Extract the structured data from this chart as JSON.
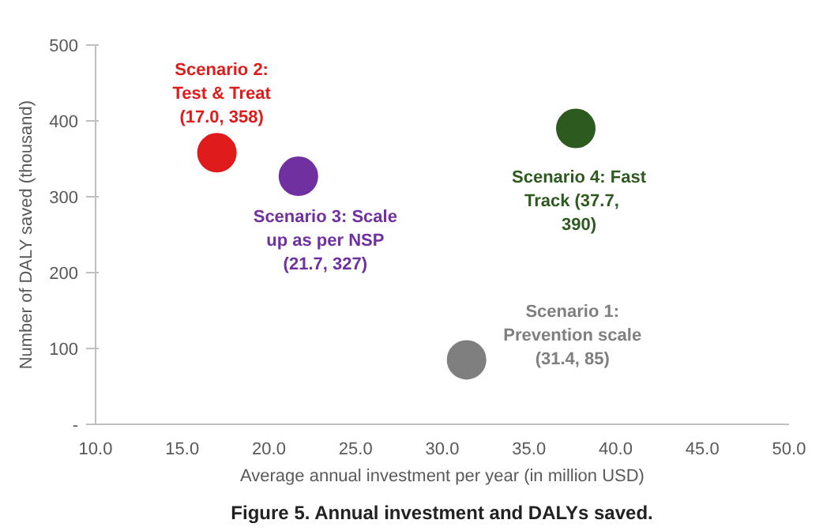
{
  "chart_data": {
    "type": "scatter",
    "title": "Figure 5. Annual investment and DALYs saved.",
    "xlabel": "Average annual investment per year (in million USD)",
    "ylabel": "Number of DALY saved (thousand)",
    "series": [
      {
        "name": "Scenario 1:\nPrevention scale\n(31.4, 85)",
        "color": "#7f7f7f",
        "x": [
          31.4
        ],
        "values": [
          85
        ]
      },
      {
        "name": "Scenario 2:\nTest & Treat\n(17.0, 358)",
        "color": "#e01b1b",
        "x": [
          17.0
        ],
        "values": [
          358
        ]
      },
      {
        "name": "Scenario 3: Scale\nup as per NSP\n(21.7, 327)",
        "color": "#7030a0",
        "x": [
          21.7
        ],
        "values": [
          327
        ]
      },
      {
        "name": "Scenario 4: Fast\nTrack    (37.7,\n390)",
        "color": "#2d5a1e",
        "x": [
          37.7
        ],
        "values": [
          390
        ]
      }
    ],
    "xlim": [
      10,
      50
    ],
    "ylim": [
      0,
      500
    ],
    "xticks": [
      {
        "value": 10,
        "label": "10.0"
      },
      {
        "value": 15,
        "label": "15.0"
      },
      {
        "value": 20,
        "label": "20.0"
      },
      {
        "value": 25,
        "label": "25.0"
      },
      {
        "value": 30,
        "label": "30.0"
      },
      {
        "value": 35,
        "label": "35.0"
      },
      {
        "value": 40,
        "label": "40.0"
      },
      {
        "value": 45,
        "label": "45.0"
      },
      {
        "value": 50,
        "label": "50.0"
      }
    ],
    "yticks": [
      {
        "value": 0,
        "label": "-"
      },
      100,
      200,
      300,
      400,
      500
    ],
    "marker": "circle",
    "grid": false
  }
}
